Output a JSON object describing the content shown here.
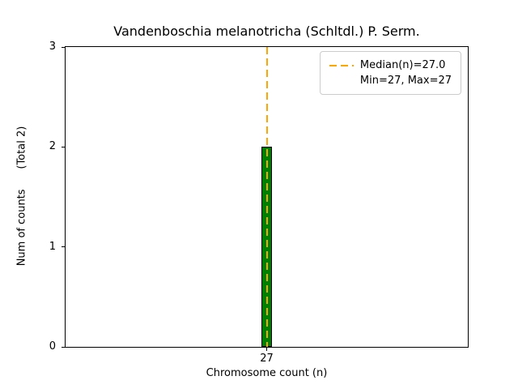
{
  "chart_data": {
    "type": "bar",
    "title": "Vandenboschia melanotricha (Schltdl.) P. Serm.",
    "xlabel": "Chromosome count (n)",
    "ylabel": "Num of counts      (Total 2)",
    "categories": [
      27
    ],
    "values": [
      2
    ],
    "x_tick_labels": [
      "27"
    ],
    "y_ticks": [
      0,
      1,
      2,
      3
    ],
    "ylim": [
      0,
      3
    ],
    "total": 2,
    "median": 27.0,
    "min": 27,
    "max": 27,
    "bar_color": "#008000",
    "bar_edge_color": "#000000",
    "median_color": "#ffa500",
    "grid": false,
    "legend_position": "upper right",
    "legend": {
      "median_label": "Median(n)=27.0",
      "minmax_label": "Min=27, Max=27"
    }
  }
}
